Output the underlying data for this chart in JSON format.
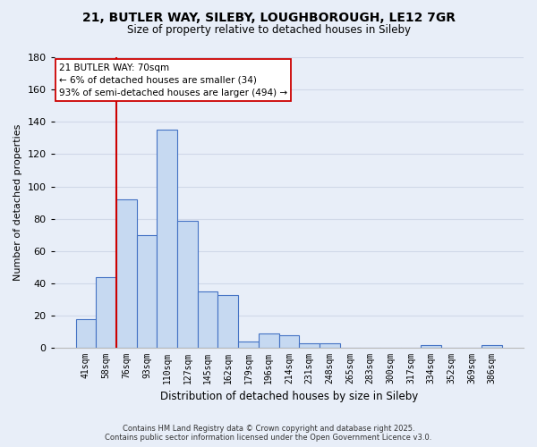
{
  "title_line1": "21, BUTLER WAY, SILEBY, LOUGHBOROUGH, LE12 7GR",
  "title_line2": "Size of property relative to detached houses in Sileby",
  "xlabel": "Distribution of detached houses by size in Sileby",
  "ylabel": "Number of detached properties",
  "bar_labels": [
    "41sqm",
    "58sqm",
    "76sqm",
    "93sqm",
    "110sqm",
    "127sqm",
    "145sqm",
    "162sqm",
    "179sqm",
    "196sqm",
    "214sqm",
    "231sqm",
    "248sqm",
    "265sqm",
    "283sqm",
    "300sqm",
    "317sqm",
    "334sqm",
    "352sqm",
    "369sqm",
    "386sqm"
  ],
  "bar_values": [
    18,
    44,
    92,
    70,
    135,
    79,
    35,
    33,
    4,
    9,
    8,
    3,
    3,
    0,
    0,
    0,
    0,
    2,
    0,
    0,
    2
  ],
  "bar_color": "#c6d9f1",
  "bar_edge_color": "#4472c4",
  "background_color": "#e8eef8",
  "grid_color": "#d0d8e8",
  "vline_x_idx": 2,
  "vline_color": "#cc0000",
  "annotation_title": "21 BUTLER WAY: 70sqm",
  "annotation_line2": "← 6% of detached houses are smaller (34)",
  "annotation_line3": "93% of semi-detached houses are larger (494) →",
  "annotation_box_color": "#ffffff",
  "annotation_box_edge": "#cc0000",
  "ylim": [
    0,
    180
  ],
  "yticks": [
    0,
    20,
    40,
    60,
    80,
    100,
    120,
    140,
    160,
    180
  ],
  "footer_line1": "Contains HM Land Registry data © Crown copyright and database right 2025.",
  "footer_line2": "Contains public sector information licensed under the Open Government Licence v3.0."
}
